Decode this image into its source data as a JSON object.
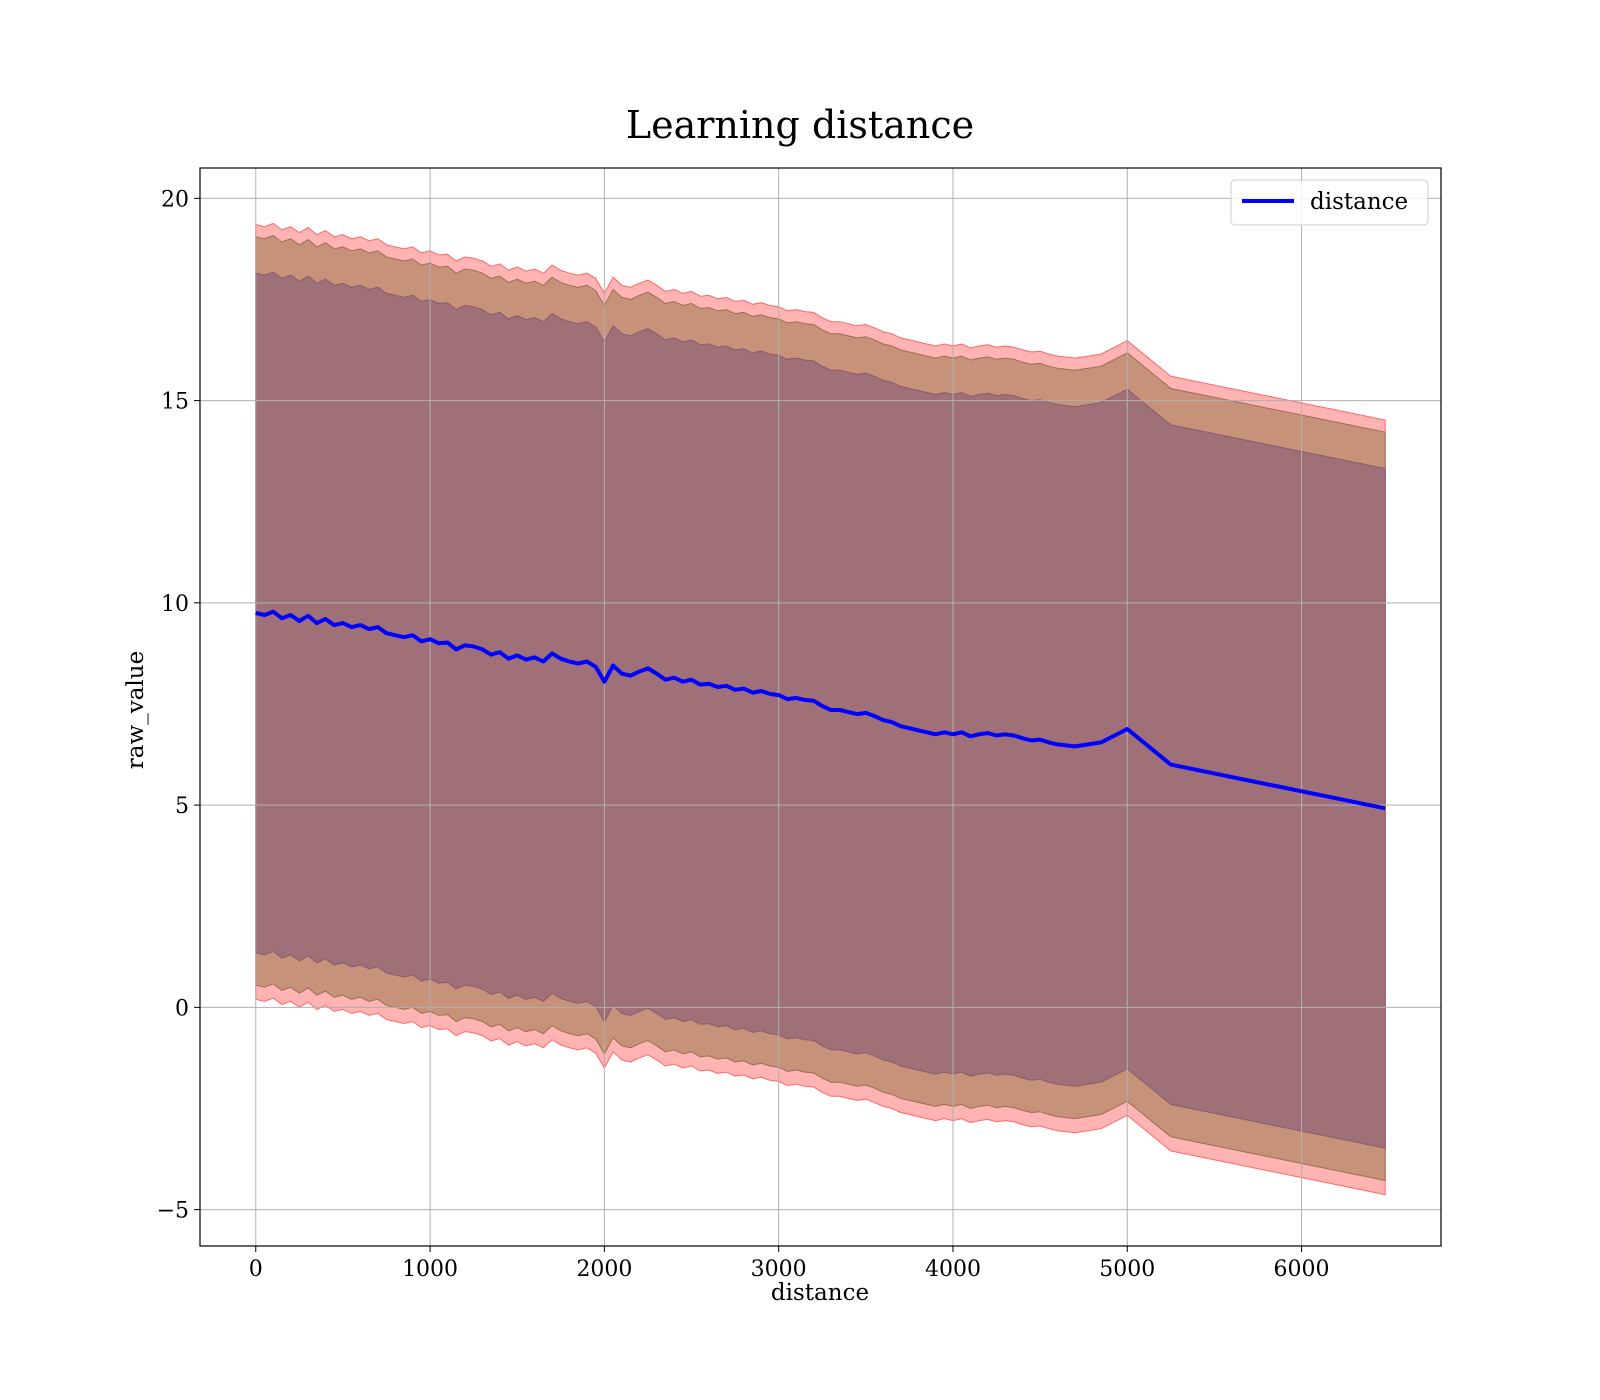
{
  "chart_data": {
    "type": "line",
    "title": "Learning distance",
    "xlabel": "distance",
    "ylabel": "raw_value",
    "xlim": [
      -320,
      6800
    ],
    "ylim": [
      -5.9,
      20.75
    ],
    "xticks": [
      0,
      1000,
      2000,
      3000,
      4000,
      5000,
      6000
    ],
    "yticks": [
      -5,
      0,
      5,
      10,
      15,
      20
    ],
    "xtick_labels": [
      "0",
      "1000",
      "2000",
      "3000",
      "4000",
      "5000",
      "6000"
    ],
    "ytick_labels": [
      "−5",
      "0",
      "5",
      "10",
      "15",
      "20"
    ],
    "grid": true,
    "legend": {
      "placement": "top-right",
      "entries": [
        "distance"
      ]
    },
    "series": [
      {
        "name": "distance",
        "color": "#0000ff",
        "x": [
          0,
          50,
          100,
          150,
          200,
          250,
          300,
          350,
          400,
          450,
          500,
          550,
          600,
          650,
          700,
          750,
          800,
          850,
          900,
          950,
          1000,
          1050,
          1100,
          1150,
          1200,
          1250,
          1300,
          1350,
          1400,
          1450,
          1500,
          1550,
          1600,
          1650,
          1700,
          1750,
          1800,
          1850,
          1900,
          1950,
          2000,
          2050,
          2100,
          2150,
          2200,
          2250,
          2300,
          2350,
          2400,
          2450,
          2500,
          2550,
          2600,
          2650,
          2700,
          2750,
          2800,
          2850,
          2900,
          2950,
          3000,
          3050,
          3100,
          3150,
          3200,
          3250,
          3300,
          3350,
          3400,
          3450,
          3500,
          3550,
          3600,
          3650,
          3700,
          3750,
          3800,
          3850,
          3900,
          3950,
          4000,
          4050,
          4100,
          4150,
          4200,
          4250,
          4300,
          4350,
          4400,
          4450,
          4500,
          4550,
          4600,
          4700,
          4850,
          5000,
          5250,
          6480
        ],
        "y": [
          9.75,
          9.7,
          9.78,
          9.62,
          9.7,
          9.55,
          9.68,
          9.5,
          9.6,
          9.45,
          9.5,
          9.4,
          9.45,
          9.35,
          9.4,
          9.25,
          9.2,
          9.15,
          9.2,
          9.05,
          9.1,
          9.0,
          9.02,
          8.85,
          8.95,
          8.92,
          8.85,
          8.72,
          8.78,
          8.62,
          8.7,
          8.6,
          8.65,
          8.55,
          8.75,
          8.62,
          8.55,
          8.5,
          8.55,
          8.42,
          8.05,
          8.45,
          8.25,
          8.2,
          8.3,
          8.38,
          8.25,
          8.1,
          8.15,
          8.05,
          8.1,
          7.98,
          8.0,
          7.92,
          7.95,
          7.85,
          7.88,
          7.78,
          7.82,
          7.75,
          7.72,
          7.62,
          7.65,
          7.6,
          7.58,
          7.45,
          7.35,
          7.35,
          7.3,
          7.25,
          7.28,
          7.2,
          7.1,
          7.05,
          6.95,
          6.9,
          6.85,
          6.8,
          6.75,
          6.8,
          6.75,
          6.8,
          6.7,
          6.75,
          6.78,
          6.72,
          6.75,
          6.72,
          6.65,
          6.6,
          6.62,
          6.55,
          6.5,
          6.45,
          6.55,
          6.88,
          6.0,
          4.92
        ]
      }
    ],
    "bands": [
      {
        "fill": "#ff9999",
        "stroke": "#ff6666",
        "opacity": 0.75,
        "lower_offset": -9.55,
        "upper_offset": 9.6
      },
      {
        "fill": "#b88a6a",
        "stroke": "#9a6e55",
        "opacity": 0.8,
        "lower_offset": -9.2,
        "upper_offset": 9.3
      },
      {
        "fill": "#a07078",
        "stroke": "#8a5a6e",
        "opacity": 1.0,
        "lower_offset": -8.4,
        "upper_offset": 8.4
      }
    ]
  }
}
